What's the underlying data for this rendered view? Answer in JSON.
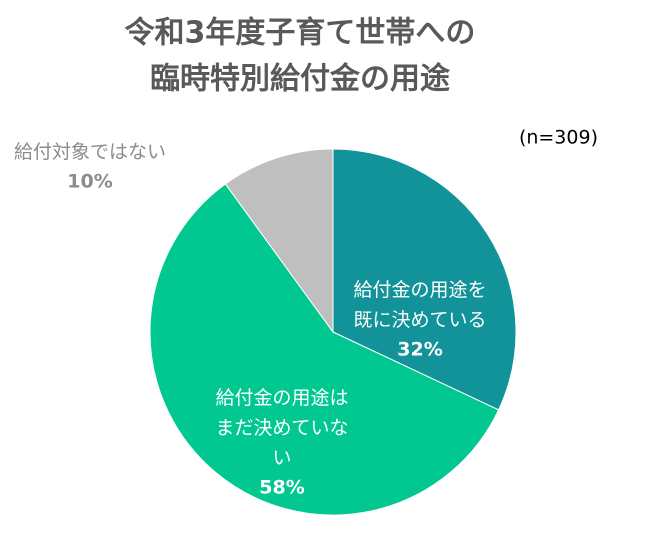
{
  "chart_data": {
    "type": "pie",
    "title": [
      "令和3年度子育て世帯への",
      "臨時特別給付金の用途"
    ],
    "subtitle": "(n=309)",
    "categories": [
      "給付金の用途を既に決めている",
      "給付金の用途はまだ決めていない",
      "給付対象ではない"
    ],
    "values": [
      32,
      58,
      10
    ],
    "value_labels": [
      "32%",
      "58%",
      "10%"
    ],
    "colors": [
      "#12939a",
      "#00c890",
      "#bfbfbf"
    ]
  }
}
